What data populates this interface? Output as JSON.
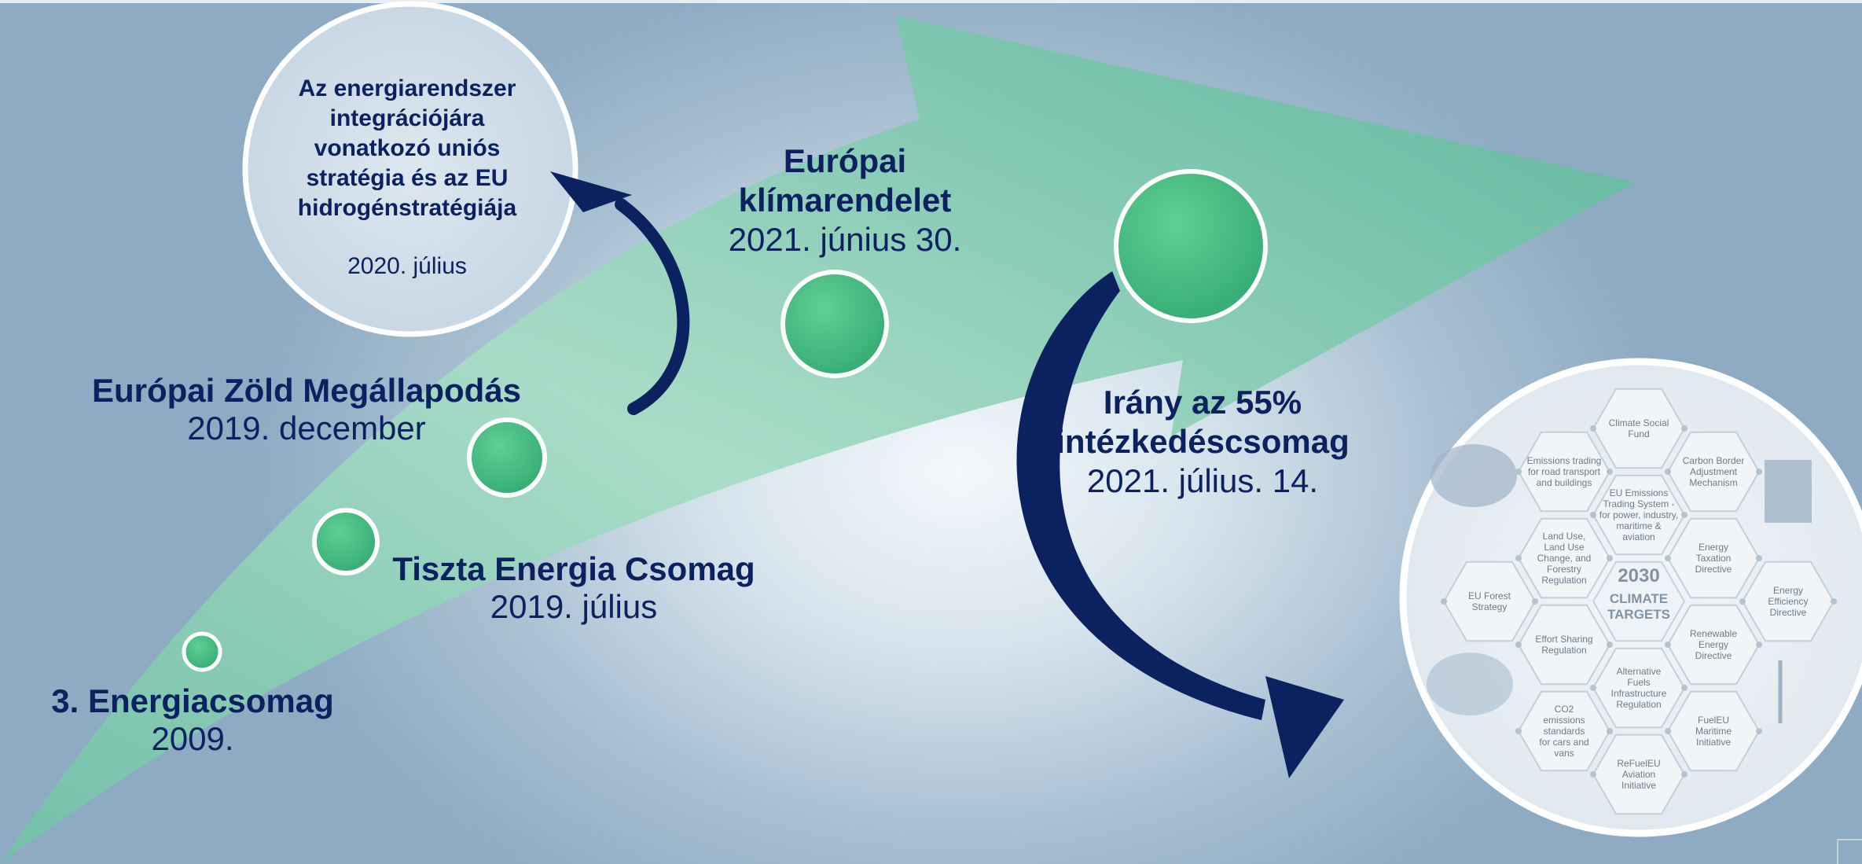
{
  "timeline": {
    "energiacsomag": {
      "title": "3. Energiacsomag",
      "date": "2009."
    },
    "tiszta_energia": {
      "title": "Tiszta Energia Csomag",
      "date": "2019. július"
    },
    "zold_megallapodas": {
      "title": "Európai Zöld Megállapodás",
      "date": "2019. december"
    },
    "klimarendelet": {
      "title_line1": "Európai",
      "title_line2": "klímarendelet",
      "date": "2021. június 30."
    },
    "iranyt": {
      "title_line1": "Irány az 55%",
      "title_line2": "intézkedéscsomag",
      "date": "2021. július. 14."
    }
  },
  "bubble": {
    "lines": [
      "Az energiarendszer",
      "integrációjára",
      "vonatkozó uniós",
      "stratégia és az EU",
      "hidrogénstratégiája"
    ],
    "date": "2020. július"
  },
  "climate_targets": {
    "center_line1": "2030",
    "center_line2": "CLIMATE",
    "center_line3": "TARGETS",
    "hexes": [
      "Climate Social|Fund",
      "Emissions trading|for road transport|and buildings",
      "Carbon Border|Adjustment|Mechanism",
      "EU Emissions|Trading System -|for power, industry,|maritime &|aviation",
      "Land Use,|Land Use|Change, and|Forestry|Regulation",
      "Energy|Taxation|Directive",
      "EU Forest|Strategy",
      "Energy|Efficiency|Directive",
      "Effort Sharing|Regulation",
      "Renewable|Energy|Directive",
      "Alternative|Fuels|Infrastructure|Regulation",
      "CO2|emissions|standards|for cars and|vans",
      "FuelEU|Maritime|Initiative",
      "ReFuelEU|Aviation|Initiative"
    ]
  },
  "colors": {
    "navy": "#0c2260",
    "green_dot": "#43b77e",
    "arrow_green": "#5cbf98"
  }
}
